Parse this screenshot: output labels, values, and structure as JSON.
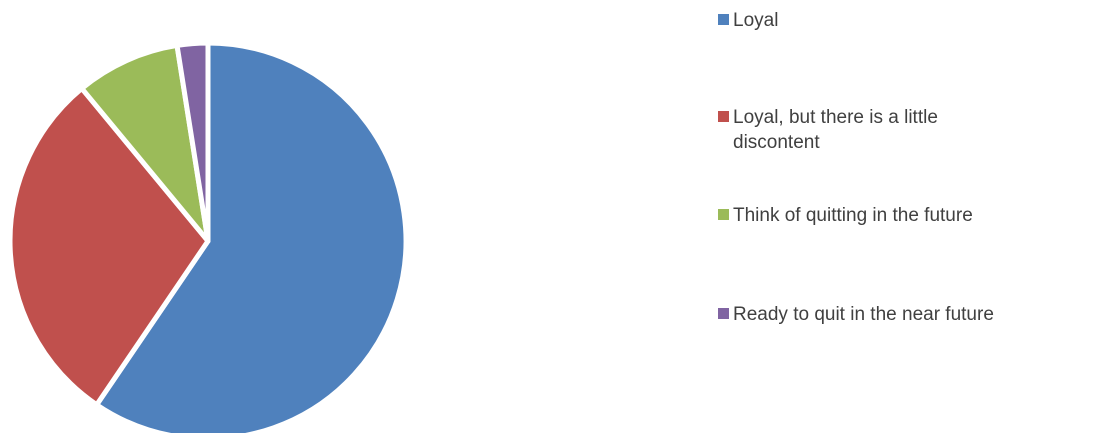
{
  "chart_data": {
    "type": "pie",
    "title": "",
    "legend_position": "right",
    "slices": [
      {
        "label": "Loyal",
        "value": 59.5,
        "color": "#4F81BD"
      },
      {
        "label": "Loyal, but there is a little discontent",
        "value": 29.5,
        "color": "#C0504D"
      },
      {
        "label": "Think of quitting in the future",
        "value": 8.5,
        "color": "#9BBB59"
      },
      {
        "label": "Ready to quit in the near future",
        "value": 2.5,
        "color": "#8064A2"
      }
    ]
  }
}
